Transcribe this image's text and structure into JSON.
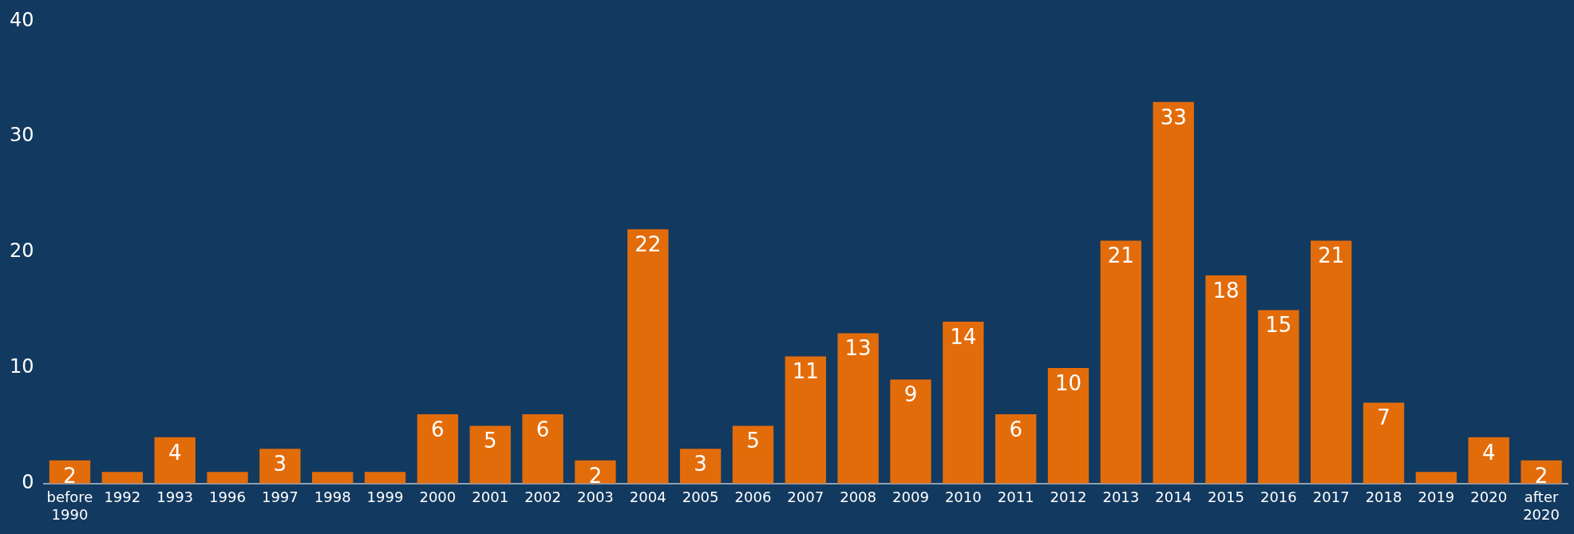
{
  "chart_data": {
    "type": "bar",
    "categories": [
      "before 1990",
      "1992",
      "1993",
      "1996",
      "1997",
      "1998",
      "1999",
      "2000",
      "2001",
      "2002",
      "2003",
      "2004",
      "2005",
      "2006",
      "2007",
      "2008",
      "2009",
      "2010",
      "2011",
      "2012",
      "2013",
      "2014",
      "2015",
      "2016",
      "2017",
      "2018",
      "2019",
      "2020",
      "after 2020"
    ],
    "values": [
      2,
      1,
      4,
      1,
      3,
      1,
      1,
      6,
      5,
      6,
      2,
      22,
      3,
      5,
      11,
      13,
      9,
      14,
      6,
      10,
      21,
      33,
      18,
      15,
      21,
      7,
      1,
      4,
      2
    ],
    "value_labels": [
      "2",
      null,
      "4",
      null,
      "3",
      null,
      null,
      "6",
      "5",
      "6",
      "2",
      "22",
      "3",
      "5",
      "11",
      "13",
      "9",
      "14",
      "6",
      "10",
      "21",
      "33",
      "18",
      "15",
      "21",
      "7",
      null,
      "4",
      "2"
    ],
    "color": "#e36c0a",
    "ylim": [
      0,
      40
    ],
    "yticks": [
      0,
      10,
      20,
      30,
      40
    ],
    "grid": false
  }
}
